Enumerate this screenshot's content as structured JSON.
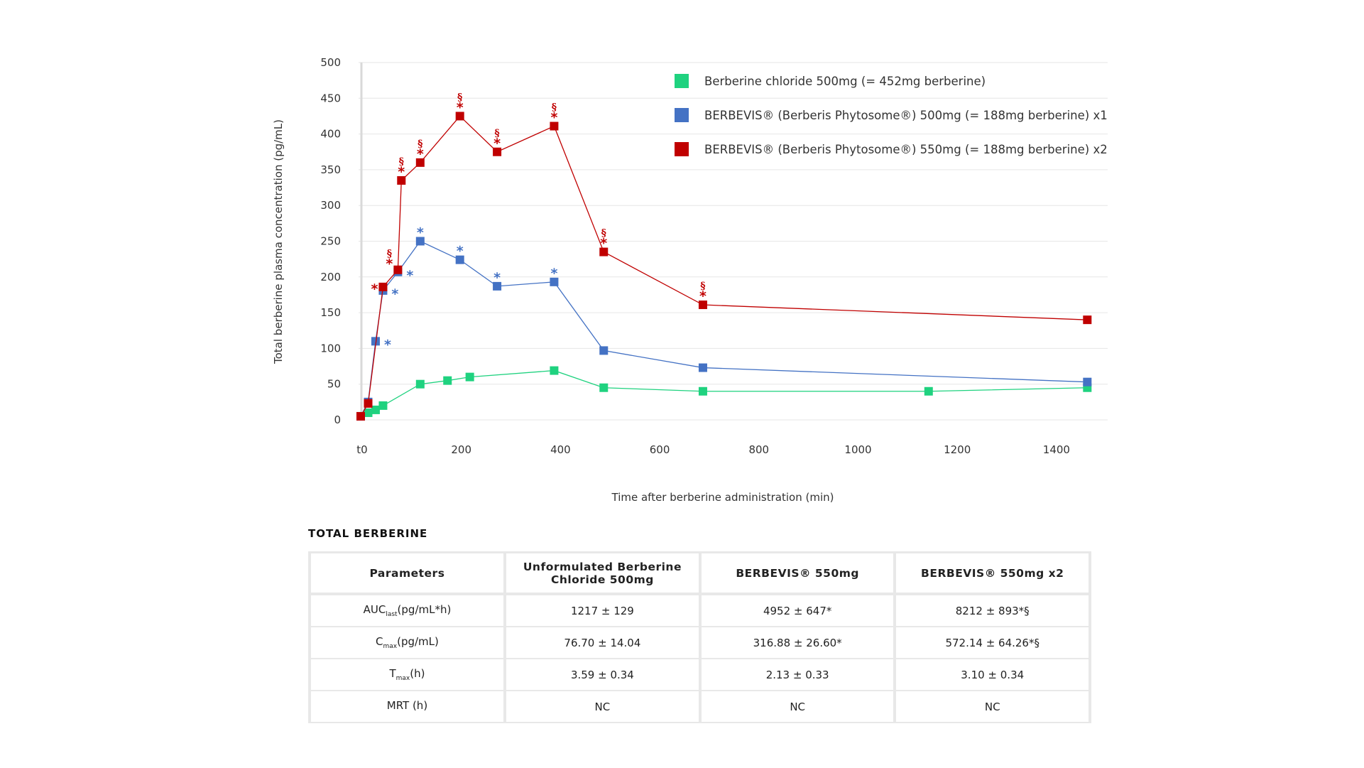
{
  "chart_data": {
    "type": "line",
    "title": "",
    "xlabel": "Time after berberine administration (min)",
    "ylabel": "Total berberine plasma concentration (pg/mL)",
    "xlim": [
      0,
      1510
    ],
    "ylim": [
      0,
      500
    ],
    "x_ticks": [
      {
        "value": 0,
        "label": "t0"
      },
      {
        "value": 200,
        "label": "200"
      },
      {
        "value": 400,
        "label": "400"
      },
      {
        "value": 600,
        "label": "600"
      },
      {
        "value": 800,
        "label": "800"
      },
      {
        "value": 1000,
        "label": "1000"
      },
      {
        "value": 1200,
        "label": "1200"
      },
      {
        "value": 1400,
        "label": "1400"
      }
    ],
    "y_ticks": [
      0,
      50,
      100,
      150,
      200,
      250,
      300,
      350,
      400,
      450,
      500
    ],
    "grid": "horizontal",
    "legend_position": "top-right",
    "series": [
      {
        "name": "Berberine chloride 500mg (= 452mg berberine)",
        "color": "#1fd27f",
        "points": [
          [
            0,
            5
          ],
          [
            15,
            10
          ],
          [
            30,
            14
          ],
          [
            45,
            20
          ],
          [
            120,
            50
          ],
          [
            175,
            55
          ],
          [
            220,
            60
          ],
          [
            390,
            69
          ],
          [
            490,
            45
          ],
          [
            690,
            40
          ],
          [
            1145,
            40
          ],
          [
            1465,
            45
          ]
        ],
        "annotations": []
      },
      {
        "name": "BERBEVIS® (Berberis Phytosome®) 500mg (= 188mg berberine) x1",
        "color": "#4472c4",
        "points": [
          [
            0,
            5
          ],
          [
            15,
            25
          ],
          [
            30,
            110
          ],
          [
            45,
            181
          ],
          [
            75,
            207
          ],
          [
            120,
            250
          ],
          [
            200,
            224
          ],
          [
            275,
            187
          ],
          [
            390,
            193
          ],
          [
            490,
            97
          ],
          [
            690,
            73
          ],
          [
            1465,
            53
          ]
        ],
        "annotations": [
          {
            "x": 30,
            "y": 110,
            "text": "*",
            "pos": "right"
          },
          {
            "x": 45,
            "y": 181,
            "text": "*",
            "pos": "right"
          },
          {
            "x": 75,
            "y": 207,
            "text": "*",
            "pos": "right"
          },
          {
            "x": 120,
            "y": 250,
            "text": "*",
            "pos": "above"
          },
          {
            "x": 200,
            "y": 224,
            "text": "*",
            "pos": "above"
          },
          {
            "x": 275,
            "y": 187,
            "text": "*",
            "pos": "above"
          },
          {
            "x": 390,
            "y": 193,
            "text": "*",
            "pos": "above"
          }
        ]
      },
      {
        "name": "BERBEVIS® (Berberis Phytosome®) 550mg (= 188mg berberine) x2",
        "color": "#c00000",
        "points": [
          [
            0,
            5
          ],
          [
            15,
            23
          ],
          [
            45,
            186
          ],
          [
            75,
            210
          ],
          [
            82,
            335
          ],
          [
            120,
            360
          ],
          [
            200,
            425
          ],
          [
            275,
            375
          ],
          [
            390,
            411
          ],
          [
            490,
            235
          ],
          [
            690,
            161
          ],
          [
            1465,
            140
          ]
        ],
        "annotations": [
          {
            "x": 45,
            "y": 186,
            "text": "*",
            "pos": "left"
          },
          {
            "x": 75,
            "y": 210,
            "text": "§*",
            "pos": "above-left"
          },
          {
            "x": 82,
            "y": 335,
            "text": "§*",
            "pos": "above"
          },
          {
            "x": 120,
            "y": 360,
            "text": "§*",
            "pos": "above"
          },
          {
            "x": 200,
            "y": 425,
            "text": "§*",
            "pos": "above"
          },
          {
            "x": 275,
            "y": 375,
            "text": "§*",
            "pos": "above"
          },
          {
            "x": 390,
            "y": 411,
            "text": "§*",
            "pos": "above"
          },
          {
            "x": 490,
            "y": 235,
            "text": "§*",
            "pos": "above"
          },
          {
            "x": 690,
            "y": 161,
            "text": "§*",
            "pos": "above"
          }
        ]
      }
    ]
  },
  "table": {
    "title": "TOTAL BERBERINE",
    "headers": [
      "Parameters",
      "Unformulated Berberine Chloride 500mg",
      "BERBEVIS® 550mg",
      "BERBEVIS® 550mg x2"
    ],
    "rows": [
      {
        "param_main": "AUC",
        "param_sub": "last",
        "param_unit": "(pg/mL*h)",
        "values": [
          "1217 ± 129",
          "4952 ± 647*",
          "8212 ± 893*§"
        ]
      },
      {
        "param_main": "C",
        "param_sub": "max",
        "param_unit": "(pg/mL)",
        "values": [
          "76.70 ± 14.04",
          "316.88 ± 26.60*",
          "572.14 ± 64.26*§"
        ]
      },
      {
        "param_main": "T",
        "param_sub": "max",
        "param_unit": "(h)",
        "values": [
          "3.59 ± 0.34",
          "2.13 ± 0.33",
          "3.10 ± 0.34"
        ]
      },
      {
        "param_main": "MRT (h)",
        "param_sub": "",
        "param_unit": "",
        "values": [
          "NC",
          "NC",
          "NC"
        ]
      }
    ]
  }
}
